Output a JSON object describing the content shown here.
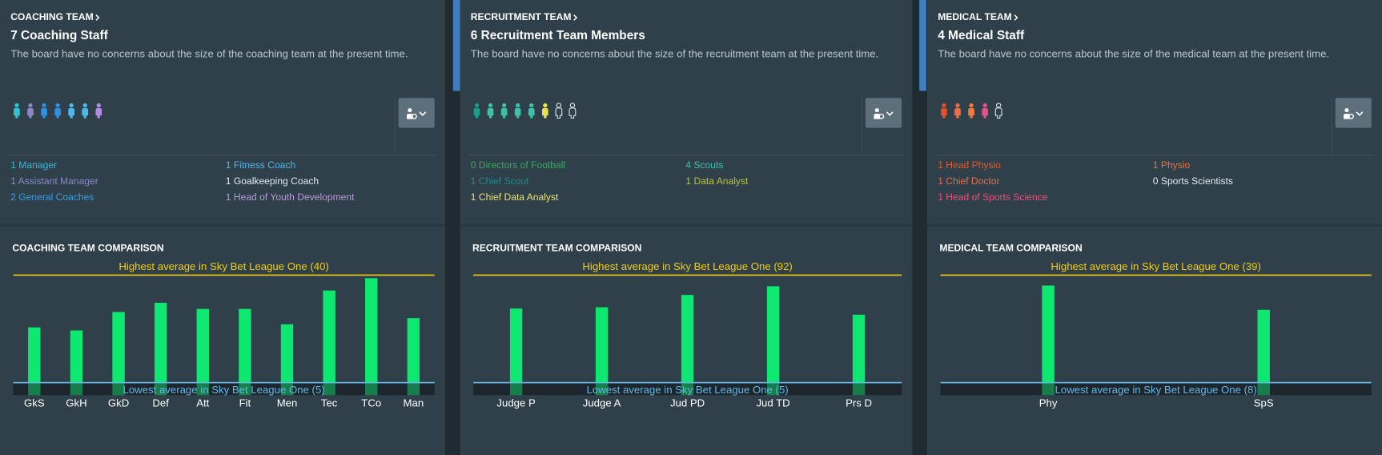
{
  "panels": [
    {
      "header": "COACHING TEAM",
      "title": "7 Coaching Staff",
      "description": "The board have no concerns about the size of the coaching team at the present time.",
      "icons": [
        {
          "color": "#2fc3d2",
          "filled": true
        },
        {
          "color": "#8b87c8",
          "filled": true
        },
        {
          "color": "#2e90e0",
          "filled": true
        },
        {
          "color": "#2e90e0",
          "filled": true
        },
        {
          "color": "#4bb9e9",
          "filled": true
        },
        {
          "color": "#4bb9e9",
          "filled": true
        },
        {
          "color": "#b48be0",
          "filled": true
        }
      ],
      "roles": [
        [
          {
            "text": "1 Manager",
            "color": "#3fb6d4"
          },
          {
            "text": "1 Assistant Manager",
            "color": "#8a86c6"
          },
          {
            "text": "2 General Coaches",
            "color": "#3a9be0"
          }
        ],
        [
          {
            "text": "1 Fitness Coach",
            "color": "#4fb8e8"
          },
          {
            "text": "1 Goalkeeping Coach",
            "color": "#e2eaef"
          },
          {
            "text": "1 Head of Youth Development",
            "color": "#b99ad8"
          }
        ]
      ],
      "comparison": {
        "type": "bar",
        "title": "COACHING TEAM COMPARISON",
        "categories": [
          "GkS",
          "GkH",
          "GkD",
          "Def",
          "Att",
          "Fit",
          "Men",
          "Tec",
          "TCo",
          "Man"
        ],
        "values": [
          23,
          22,
          28,
          31,
          29,
          29,
          24,
          35,
          39,
          26
        ],
        "color": "#0fe870",
        "high": {
          "label": "Highest average in Sky Bet League One (40)",
          "value": 40,
          "color": "#f2cd14"
        },
        "low": {
          "label": "Lowest average in Sky Bet League One (5)",
          "value": 5,
          "color": "#62b8e8"
        }
      }
    },
    {
      "header": "RECRUITMENT TEAM",
      "title": "6 Recruitment Team Members",
      "description": "The board have no concerns about the size of the recruitment team at the present time.",
      "icons": [
        {
          "color": "#1e9c8c",
          "filled": true
        },
        {
          "color": "#3fbfa8",
          "filled": true
        },
        {
          "color": "#3fbfa8",
          "filled": true
        },
        {
          "color": "#3fbfa8",
          "filled": true
        },
        {
          "color": "#3fbfa8",
          "filled": true
        },
        {
          "color": "#e8e050",
          "filled": true
        },
        {
          "color": "#dde4e8",
          "filled": false
        },
        {
          "color": "#dde4e8",
          "filled": false
        }
      ],
      "roles": [
        [
          {
            "text": "0 Directors of Football",
            "color": "#3aa860"
          },
          {
            "text": "1 Chief Scout",
            "color": "#1e8c8c"
          },
          {
            "text": "1 Chief Data Analyst",
            "color": "#e8e070"
          }
        ],
        [
          {
            "text": "4 Scouts",
            "color": "#3fbfa8"
          },
          {
            "text": "1 Data Analyst",
            "color": "#b8c440"
          }
        ]
      ],
      "comparison": {
        "type": "bar",
        "title": "RECRUITMENT TEAM COMPARISON",
        "categories": [
          "Judge P",
          "Judge A",
          "Jud PD",
          "Jud TD",
          "Prs D"
        ],
        "values": [
          65,
          66,
          76,
          83,
          60
        ],
        "color": "#0fe870",
        "high": {
          "label": "Highest average in Sky Bet League One (92)",
          "value": 92,
          "color": "#f2cd14"
        },
        "low": {
          "label": "Lowest average in Sky Bet League One (5)",
          "value": 5,
          "color": "#62b8e8"
        }
      }
    },
    {
      "header": "MEDICAL TEAM",
      "title": "4 Medical Staff",
      "description": "The board have no concerns about the size of the medical team at the present time.",
      "icons": [
        {
          "color": "#e0502a",
          "filled": true
        },
        {
          "color": "#e8704a",
          "filled": true
        },
        {
          "color": "#f07a40",
          "filled": true
        },
        {
          "color": "#e8508a",
          "filled": true
        },
        {
          "color": "#dde4e8",
          "filled": false
        }
      ],
      "roles": [
        [
          {
            "text": "1 Head Physio",
            "color": "#e05a2a"
          },
          {
            "text": "1 Chief Doctor",
            "color": "#e0704a"
          },
          {
            "text": "1 Head of Sports Science",
            "color": "#e8507a"
          }
        ],
        [
          {
            "text": "1 Physio",
            "color": "#f07040"
          },
          {
            "text": "0 Sports Scientists",
            "color": "#e2eaef"
          }
        ]
      ],
      "comparison": {
        "type": "bar",
        "title": "MEDICAL TEAM COMPARISON",
        "categories": [
          "Phy",
          "SpS"
        ],
        "values": [
          36,
          29
        ],
        "color": "#0fe870",
        "high": {
          "label": "Highest average in Sky Bet League One (39)",
          "value": 39,
          "color": "#f2cd14"
        },
        "low": {
          "label": "Lowest average in Sky Bet League One (8)",
          "value": 8,
          "color": "#62b8e8"
        }
      }
    }
  ]
}
